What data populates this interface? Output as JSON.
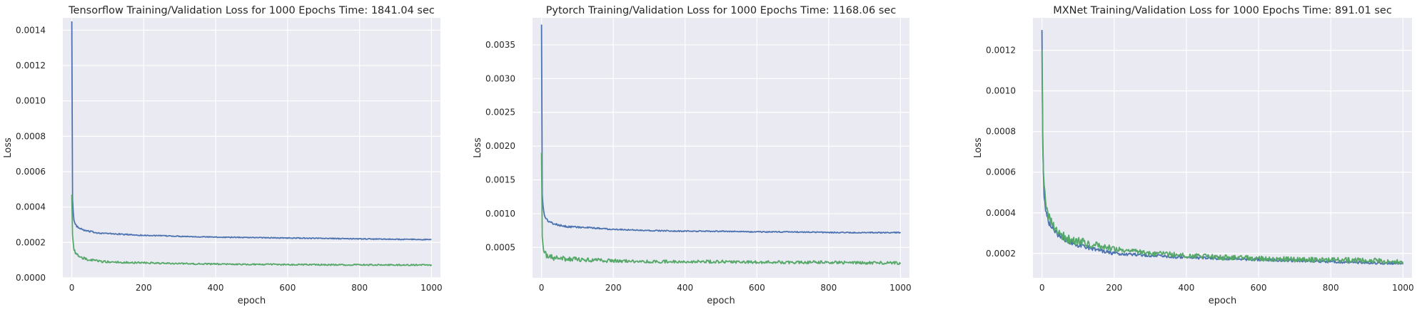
{
  "colors": {
    "train": "#4c72b0",
    "validation": "#55a868",
    "panel_bg": "#eaeaf2",
    "grid": "#ffffff",
    "text": "#262626"
  },
  "chart_data": [
    {
      "type": "line",
      "title": "Tensorflow Training/Validation Loss for 1000 Epochs Time: 1841.04 sec",
      "xlabel": "epoch",
      "ylabel": "Loss",
      "xlim": [
        -25,
        1025
      ],
      "ylim": [
        0,
        0.00147
      ],
      "xticks": [
        0,
        200,
        400,
        600,
        800,
        1000
      ],
      "xtick_labels": [
        "0",
        "200",
        "400",
        "600",
        "800",
        "1000"
      ],
      "yticks": [
        0,
        0.0002,
        0.0004,
        0.0006,
        0.0008,
        0.001,
        0.0012,
        0.0014
      ],
      "ytick_labels": [
        "0.0000",
        "0.0002",
        "0.0004",
        "0.0006",
        "0.0008",
        "0.0010",
        "0.0012",
        "0.0014"
      ],
      "grid": true,
      "series": [
        {
          "color": "#4c72b0",
          "x": [
            0,
            2,
            5,
            10,
            20,
            40,
            70,
            100,
            200,
            300,
            400,
            500,
            600,
            700,
            800,
            900,
            1000
          ],
          "y": [
            0.00145,
            0.00045,
            0.00033,
            0.0003,
            0.00028,
            0.000265,
            0.000255,
            0.00025,
            0.00024,
            0.000235,
            0.00023,
            0.000228,
            0.000225,
            0.000223,
            0.00022,
            0.000218,
            0.000216
          ],
          "noise": 2.5e-06
        },
        {
          "color": "#55a868",
          "x": [
            0,
            2,
            5,
            10,
            20,
            40,
            70,
            100,
            200,
            300,
            400,
            500,
            600,
            700,
            800,
            900,
            1000
          ],
          "y": [
            0.00047,
            0.00025,
            0.00017,
            0.00014,
            0.00012,
            0.000105,
            9.5e-05,
            9e-05,
            8.5e-05,
            8e-05,
            7.8e-05,
            7.6e-05,
            7.5e-05,
            7.4e-05,
            7.3e-05,
            7.3e-05,
            7.2e-05
          ],
          "noise": 4e-06
        }
      ]
    },
    {
      "type": "line",
      "title": "Pytorch Training/Validation Loss for 1000 Epochs Time: 1168.06 sec",
      "xlabel": "epoch",
      "ylabel": "Loss",
      "xlim": [
        -25,
        1025
      ],
      "ylim": [
        5e-05,
        0.0039
      ],
      "xticks": [
        0,
        200,
        400,
        600,
        800,
        1000
      ],
      "xtick_labels": [
        "0",
        "200",
        "400",
        "600",
        "800",
        "1000"
      ],
      "yticks": [
        0.0005,
        0.001,
        0.0015,
        0.002,
        0.0025,
        0.003,
        0.0035
      ],
      "ytick_labels": [
        "0.0005",
        "0.0010",
        "0.0015",
        "0.0020",
        "0.0025",
        "0.0030",
        "0.0035"
      ],
      "grid": true,
      "series": [
        {
          "color": "#4c72b0",
          "x": [
            0,
            2,
            5,
            10,
            20,
            40,
            70,
            100,
            200,
            300,
            400,
            500,
            600,
            700,
            800,
            900,
            1000
          ],
          "y": [
            0.0038,
            0.0013,
            0.00105,
            0.00095,
            0.00088,
            0.00084,
            0.00081,
            0.0008,
            0.00077,
            0.00075,
            0.00074,
            0.00074,
            0.00073,
            0.00073,
            0.00072,
            0.00072,
            0.00072
          ],
          "noise": 8e-06
        },
        {
          "color": "#55a868",
          "x": [
            0,
            2,
            5,
            10,
            20,
            40,
            70,
            100,
            200,
            300,
            400,
            500,
            600,
            700,
            800,
            900,
            1000
          ],
          "y": [
            0.0019,
            0.0007,
            0.00048,
            0.0004,
            0.00036,
            0.00034,
            0.00033,
            0.00032,
            0.0003,
            0.00029,
            0.00029,
            0.00029,
            0.00028,
            0.00028,
            0.00028,
            0.00027,
            0.00027
          ],
          "noise": 2.2e-05
        }
      ]
    },
    {
      "type": "line",
      "title": "MXNet Training/Validation Loss for 1000 Epochs Time: 891.01 sec",
      "xlabel": "epoch",
      "ylabel": "Loss",
      "xlim": [
        -25,
        1025
      ],
      "ylim": [
        8e-05,
        0.00136
      ],
      "xticks": [
        0,
        200,
        400,
        600,
        800,
        1000
      ],
      "xtick_labels": [
        "0",
        "200",
        "400",
        "600",
        "800",
        "1000"
      ],
      "yticks": [
        0.0002,
        0.0004,
        0.0006,
        0.0008,
        0.001,
        0.0012
      ],
      "ytick_labels": [
        "0.0002",
        "0.0004",
        "0.0006",
        "0.0008",
        "0.0010",
        "0.0012"
      ],
      "grid": true,
      "series": [
        {
          "color": "#4c72b0",
          "x": [
            0,
            2,
            5,
            10,
            20,
            40,
            70,
            100,
            150,
            200,
            300,
            400,
            500,
            600,
            700,
            800,
            900,
            1000
          ],
          "y": [
            0.0013,
            0.0008,
            0.0005,
            0.00042,
            0.00035,
            0.0003,
            0.00026,
            0.00024,
            0.00022,
            0.0002,
            0.00019,
            0.00018,
            0.000175,
            0.00017,
            0.000165,
            0.00016,
            0.000155,
            0.00015
          ],
          "noise": 7e-06
        },
        {
          "color": "#55a868",
          "x": [
            0,
            2,
            5,
            10,
            20,
            40,
            70,
            100,
            150,
            200,
            300,
            400,
            500,
            600,
            700,
            800,
            900,
            1000
          ],
          "y": [
            0.0012,
            0.00075,
            0.00055,
            0.00045,
            0.00037,
            0.00031,
            0.00027,
            0.00026,
            0.00024,
            0.00022,
            0.0002,
            0.00019,
            0.00018,
            0.000175,
            0.00017,
            0.000168,
            0.000165,
            0.00016
          ],
          "noise": 1.3e-05
        }
      ]
    }
  ]
}
